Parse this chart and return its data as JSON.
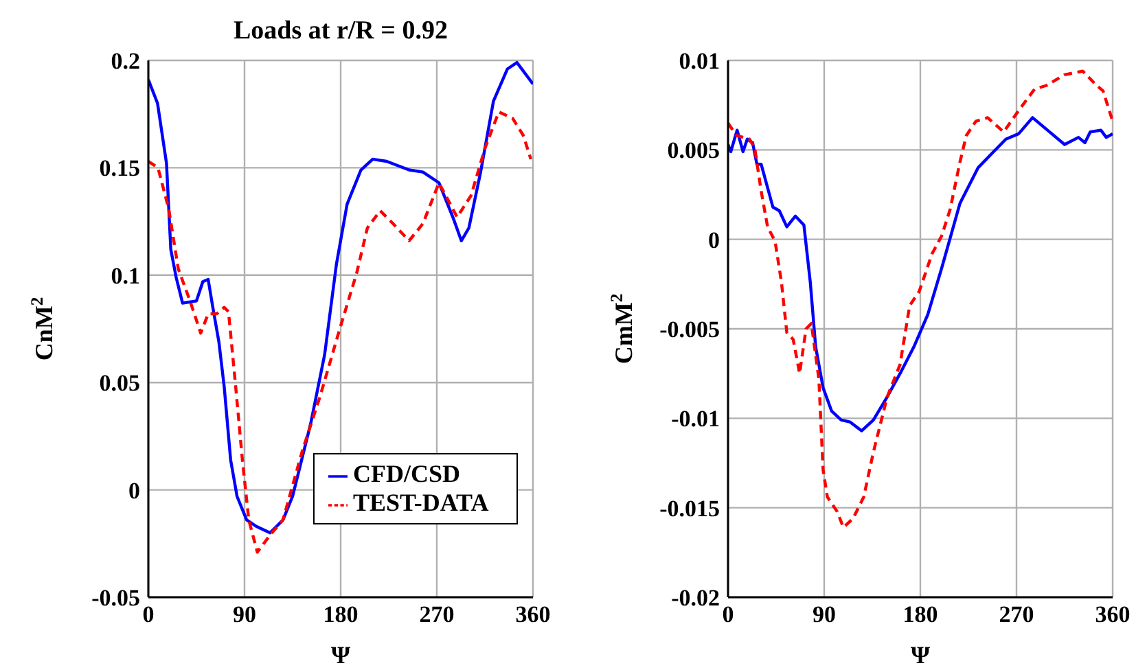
{
  "chart_data": [
    {
      "type": "line",
      "title": "Loads at r/R = 0.92",
      "xlabel": "Ψ",
      "ylabel": "CnM$^{2}$",
      "xlim": [
        0,
        360
      ],
      "xticks": [
        0,
        90,
        180,
        270,
        360
      ],
      "ylim": [
        -0.05,
        0.2
      ],
      "yticks": [
        -0.05,
        0,
        0.05,
        0.1,
        0.15,
        0.2
      ],
      "grid": true,
      "legend": "bottom right",
      "series": [
        {
          "name": "CFD/CSD",
          "color": "#0000ff",
          "line_style": "solid",
          "x": [
            0,
            8.6,
            17,
            21,
            26,
            32,
            45,
            51,
            56,
            60,
            66,
            71,
            77,
            83,
            92,
            101,
            114,
            126,
            135,
            152,
            165,
            176,
            186,
            199,
            210,
            223,
            244,
            257,
            272,
            285,
            293,
            300,
            311,
            323,
            336,
            345,
            351,
            360
          ],
          "values": [
            0.191,
            0.18,
            0.152,
            0.112,
            0.099,
            0.087,
            0.088,
            0.097,
            0.098,
            0.086,
            0.069,
            0.048,
            0.014,
            -0.003,
            -0.014,
            -0.017,
            -0.02,
            -0.014,
            -0.003,
            0.031,
            0.063,
            0.105,
            0.133,
            0.149,
            0.154,
            0.153,
            0.149,
            0.148,
            0.143,
            0.127,
            0.116,
            0.122,
            0.148,
            0.181,
            0.196,
            0.199,
            0.195,
            0.189
          ]
        },
        {
          "name": "TEST-DATA",
          "color": "#ff0000",
          "line_style": "dashed",
          "x": [
            0,
            9,
            19,
            28,
            39,
            49,
            56,
            64,
            71,
            75,
            81,
            88,
            94,
            102,
            114,
            126,
            144,
            161,
            178,
            195,
            205,
            217,
            229,
            244,
            257,
            272,
            289,
            302,
            315,
            328,
            341,
            351,
            358
          ],
          "values": [
            0.153,
            0.15,
            0.131,
            0.103,
            0.088,
            0.073,
            0.082,
            0.082,
            0.085,
            0.083,
            0.052,
            0.014,
            -0.014,
            -0.029,
            -0.021,
            -0.014,
            0.018,
            0.044,
            0.073,
            0.101,
            0.122,
            0.13,
            0.124,
            0.116,
            0.124,
            0.143,
            0.127,
            0.137,
            0.159,
            0.176,
            0.173,
            0.165,
            0.154
          ]
        }
      ]
    },
    {
      "type": "line",
      "xlabel": "Ψ",
      "ylabel": "CmM$^{2}$",
      "xlim": [
        0,
        360
      ],
      "xticks": [
        0,
        90,
        180,
        270,
        360
      ],
      "ylim": [
        -0.02,
        0.01
      ],
      "yticks": [
        -0.02,
        -0.015,
        -0.01,
        -0.005,
        0,
        0.005,
        0.01
      ],
      "grid": true,
      "series": [
        {
          "color": "#0000ff",
          "line_style": "solid",
          "x": [
            0,
            2.6,
            8.5,
            14,
            18,
            23,
            27,
            31,
            42,
            48,
            55,
            63,
            71,
            77,
            82,
            89,
            97,
            106,
            114,
            125,
            136,
            149,
            161,
            174,
            187,
            200,
            217,
            234,
            247,
            260,
            272,
            285,
            299,
            315,
            328,
            334,
            339,
            349,
            354,
            360
          ],
          "values": [
            0.0053,
            0.0049,
            0.0061,
            0.0049,
            0.0056,
            0.0054,
            0.0042,
            0.0042,
            0.0018,
            0.0016,
            0.0007,
            0.0013,
            0.0008,
            -0.0024,
            -0.006,
            -0.0083,
            -0.0096,
            -0.0101,
            -0.0102,
            -0.0107,
            -0.0101,
            -0.0088,
            -0.0075,
            -0.006,
            -0.0042,
            -0.0016,
            0.002,
            0.004,
            0.0048,
            0.0056,
            0.0059,
            0.0068,
            0.0061,
            0.0053,
            0.0057,
            0.0054,
            0.006,
            0.0061,
            0.0057,
            0.0059
          ]
        },
        {
          "color": "#ff0000",
          "line_style": "dashed",
          "x": [
            0,
            8,
            20,
            25,
            31,
            37,
            44,
            50,
            55,
            61,
            67,
            73,
            78,
            85,
            89,
            93,
            102,
            108,
            117,
            127,
            136,
            149,
            161,
            170,
            179,
            191,
            200,
            208,
            217,
            223,
            232,
            243,
            258,
            272,
            287,
            298,
            315,
            332,
            345,
            351,
            360
          ],
          "values": [
            0.0065,
            0.0058,
            0.0056,
            0.0051,
            0.0027,
            0.0007,
            -0.0001,
            -0.0024,
            -0.0052,
            -0.0056,
            -0.0075,
            -0.005,
            -0.0047,
            -0.0078,
            -0.0129,
            -0.0144,
            -0.0152,
            -0.0161,
            -0.0156,
            -0.0144,
            -0.0119,
            -0.0088,
            -0.007,
            -0.0037,
            -0.0029,
            -0.0008,
            0.0002,
            0.0017,
            0.0043,
            0.0058,
            0.0066,
            0.0068,
            0.006,
            0.0072,
            0.0084,
            0.0086,
            0.0092,
            0.0094,
            0.0086,
            0.0083,
            0.0066
          ]
        }
      ]
    }
  ]
}
